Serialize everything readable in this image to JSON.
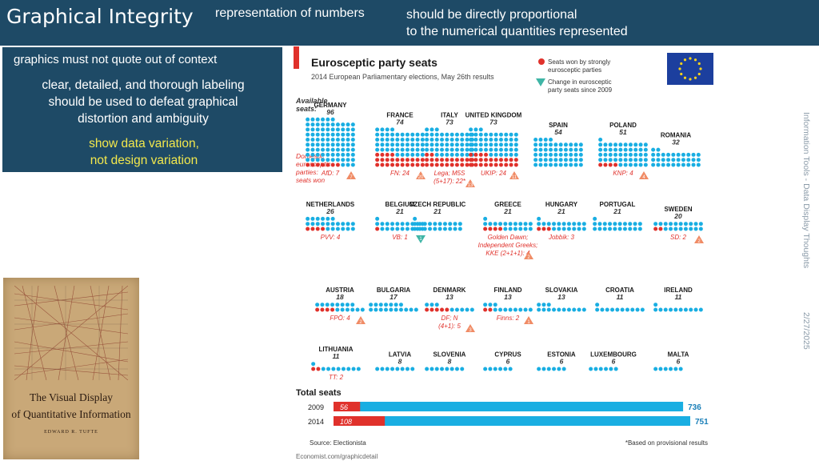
{
  "slide": {
    "title": "Graphical Integrity",
    "subtitle_left": "representation of numbers",
    "subtitle_right_line1": "should be directly proportional",
    "subtitle_right_line2": "to the numerical quantities represented"
  },
  "sidebar": {
    "line1": "graphics must not quote out of context",
    "para_line1": "clear, detailed, and thorough labeling",
    "para_line2": "should be used to defeat graphical",
    "para_line3": "distortion and ambiguity",
    "accent_line1": "show data variation,",
    "accent_line2": "not design variation",
    "accent_color": "#f3e84c",
    "panel_color": "#1e4a66"
  },
  "book": {
    "title_line1": "The Visual Display",
    "title_line2": "of Quantitative Information",
    "author": "EDWARD R. TUFTE"
  },
  "footer": {
    "side_text": "Information Tools - Data Display Thoughts",
    "date": "2/27/2025"
  },
  "chart_data": {
    "type": "table",
    "title": "Eurosceptic party seats",
    "subtitle": "2014 European Parliamentary elections, May 26th results",
    "legend": {
      "red": "Seats won by strongly eurosceptic parties",
      "red_line1": "Seats won by strongly",
      "red_line2": "eurosceptic parties",
      "change_line1": "Change in eurosceptic",
      "change_line2": "party seats since 2009"
    },
    "available_label": "Available seats:",
    "available_line1": "Available",
    "available_line2": "seats:",
    "domestic_line1": "Domestic",
    "domestic_line2": "eurosceptic",
    "domestic_line3": "parties:",
    "domestic_line4": "seats won",
    "countries": [
      {
        "name": "GERMANY",
        "seats": 96,
        "won": 7,
        "party": "AfD: 7",
        "change": "7",
        "dir": "up",
        "row": 0
      },
      {
        "name": "FRANCE",
        "seats": 74,
        "won": 24,
        "party": "FN: 24",
        "change": "20",
        "dir": "up",
        "row": 0
      },
      {
        "name": "ITALY",
        "seats": 73,
        "won": 22,
        "party": "Lega; M5S (5+17): 22*",
        "party_line1": "Lega; M5S",
        "party_line2": "(5+17): 22*",
        "change": "13",
        "dir": "up",
        "row": 0
      },
      {
        "name": "UNITED KINGDOM",
        "seats": 73,
        "won": 24,
        "party": "UKIP: 24",
        "change": "11",
        "dir": "up",
        "row": 0
      },
      {
        "name": "SPAIN",
        "seats": 54,
        "won": 0,
        "party": "",
        "change": "",
        "dir": "",
        "row": 0
      },
      {
        "name": "POLAND",
        "seats": 51,
        "won": 4,
        "party": "KNP: 4",
        "change": "4",
        "dir": "up",
        "row": 0
      },
      {
        "name": "ROMANIA",
        "seats": 32,
        "won": 0,
        "party": "",
        "change": "",
        "dir": "",
        "row": 0
      },
      {
        "name": "NETHERLANDS",
        "seats": 26,
        "won": 4,
        "party": "PVV: 4",
        "change": "",
        "dir": "",
        "row": 1
      },
      {
        "name": "BELGIUM",
        "seats": 21,
        "won": 1,
        "party": "VB: 1",
        "change": "1",
        "dir": "down",
        "row": 1
      },
      {
        "name": "CZECH REPUBLIC",
        "seats": 21,
        "won": 0,
        "party": "",
        "change": "",
        "dir": "",
        "row": 1
      },
      {
        "name": "GREECE",
        "seats": 21,
        "won": 4,
        "party": "Golden Dawn; Independent Greeks; KKE (2+1+1): 4",
        "party_line1": "Golden Dawn;",
        "party_line2": "Independent Greeks;",
        "party_line3": "KKE (2+1+1): 4",
        "change": "2",
        "dir": "up",
        "row": 1
      },
      {
        "name": "HUNGARY",
        "seats": 21,
        "won": 3,
        "party": "Jobbik: 3",
        "change": "",
        "dir": "",
        "row": 1
      },
      {
        "name": "PORTUGAL",
        "seats": 21,
        "won": 0,
        "party": "",
        "change": "",
        "dir": "",
        "row": 1
      },
      {
        "name": "SWEDEN",
        "seats": 20,
        "won": 2,
        "party": "SD: 2",
        "change": "2",
        "dir": "up",
        "row": 1
      },
      {
        "name": "AUSTRIA",
        "seats": 18,
        "won": 4,
        "party": "FPÖ: 4",
        "change": "2",
        "dir": "up",
        "row": 2
      },
      {
        "name": "BULGARIA",
        "seats": 17,
        "won": 0,
        "party": "",
        "change": "",
        "dir": "",
        "row": 2
      },
      {
        "name": "DENMARK",
        "seats": 13,
        "won": 5,
        "party": "DF; N (4+1): 5",
        "party_line1": "DF; N",
        "party_line2": "(4+1): 5",
        "change": "3",
        "dir": "up",
        "row": 2
      },
      {
        "name": "FINLAND",
        "seats": 13,
        "won": 2,
        "party": "Finns: 2",
        "change": "1",
        "dir": "up",
        "row": 2
      },
      {
        "name": "SLOVAKIA",
        "seats": 13,
        "won": 0,
        "party": "",
        "change": "",
        "dir": "",
        "row": 2
      },
      {
        "name": "CROATIA",
        "seats": 11,
        "won": 0,
        "party": "",
        "change": "",
        "dir": "",
        "row": 2
      },
      {
        "name": "IRELAND",
        "seats": 11,
        "won": 0,
        "party": "",
        "change": "",
        "dir": "",
        "row": 2
      },
      {
        "name": "LITHUANIA",
        "seats": 11,
        "won": 2,
        "party": "TT: 2",
        "change": "",
        "dir": "",
        "row": 3
      },
      {
        "name": "LATVIA",
        "seats": 8,
        "won": 0,
        "party": "",
        "change": "",
        "dir": "",
        "row": 3
      },
      {
        "name": "SLOVENIA",
        "seats": 8,
        "won": 0,
        "party": "",
        "change": "",
        "dir": "",
        "row": 3
      },
      {
        "name": "CYPRUS",
        "seats": 6,
        "won": 0,
        "party": "",
        "change": "",
        "dir": "",
        "row": 3
      },
      {
        "name": "ESTONIA",
        "seats": 6,
        "won": 0,
        "party": "",
        "change": "",
        "dir": "",
        "row": 3
      },
      {
        "name": "LUXEMBOURG",
        "seats": 6,
        "won": 0,
        "party": "",
        "change": "",
        "dir": "",
        "row": 3
      },
      {
        "name": "MALTA",
        "seats": 6,
        "won": 0,
        "party": "",
        "change": "",
        "dir": "",
        "row": 3
      }
    ],
    "total_seats": {
      "title": "Total seats",
      "rows": [
        {
          "year": "2009",
          "eurosceptic": 56,
          "total": 736
        },
        {
          "year": "2014",
          "eurosceptic": 108,
          "total": 751
        }
      ]
    },
    "source": "Source: Electionista",
    "note": "*Based on provisional results",
    "credit": "Economist.com/graphicdetail",
    "colors": {
      "seat": "#19aee2",
      "won": "#e0312b",
      "triangle_up": "#f08b65",
      "triangle_down": "#3fb5a6",
      "accent": "#e0312b",
      "eu_blue": "#1c3f9e",
      "eu_star": "#f6d21d"
    }
  }
}
